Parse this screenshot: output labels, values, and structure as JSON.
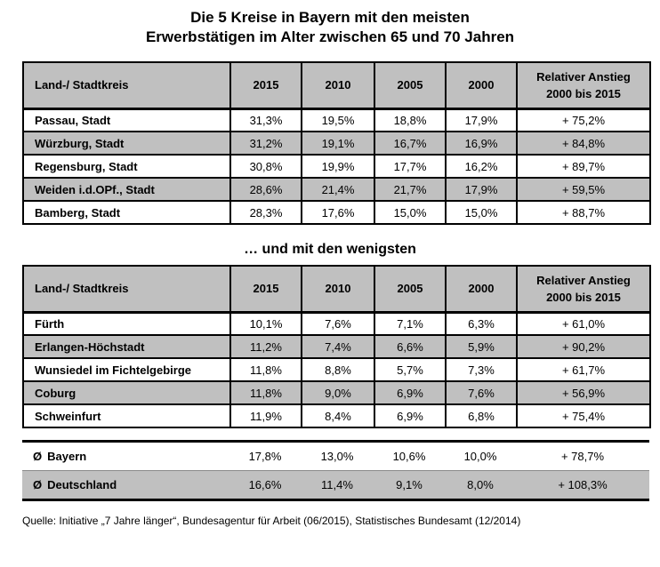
{
  "title": {
    "line1": "Die 5 Kreise in Bayern mit den meisten",
    "line2": "Erwerbstätigen im Alter zwischen 65 und 70 Jahren"
  },
  "section_least_title": "… und mit den wenigsten",
  "shared": {
    "columns": [
      "Land-/ Stadtkreis",
      "2015",
      "2010",
      "2005",
      "2000"
    ],
    "anstieg_line1": "Relativer Anstieg",
    "anstieg_line2": "2000 bis 2015"
  },
  "table_most": {
    "rows": [
      {
        "cells": [
          "Passau, Stadt",
          "31,3%",
          "19,5%",
          "18,8%",
          "17,9%",
          "+ 75,2%"
        ]
      },
      {
        "cells": [
          "Würzburg, Stadt",
          "31,2%",
          "19,1%",
          "16,7%",
          "16,9%",
          "+ 84,8%"
        ]
      },
      {
        "cells": [
          "Regensburg, Stadt",
          "30,8%",
          "19,9%",
          "17,7%",
          "16,2%",
          "+ 89,7%"
        ]
      },
      {
        "cells": [
          "Weiden i.d.OPf., Stadt",
          "28,6%",
          "21,4%",
          "21,7%",
          "17,9%",
          "+ 59,5%"
        ]
      },
      {
        "cells": [
          "Bamberg, Stadt",
          "28,3%",
          "17,6%",
          "15,0%",
          "15,0%",
          "+ 88,7%"
        ]
      }
    ]
  },
  "table_least": {
    "rows": [
      {
        "cells": [
          "Fürth",
          "10,1%",
          "7,6%",
          "7,1%",
          "6,3%",
          "+ 61,0%"
        ]
      },
      {
        "cells": [
          "Erlangen-Höchstadt",
          "11,2%",
          "7,4%",
          "6,6%",
          "5,9%",
          "+ 90,2%"
        ]
      },
      {
        "cells": [
          "Wunsiedel im Fichtelgebirge",
          "11,8%",
          "8,8%",
          "5,7%",
          "7,3%",
          "+ 61,7%"
        ]
      },
      {
        "cells": [
          "Coburg",
          "11,8%",
          "9,0%",
          "6,9%",
          "7,6%",
          "+ 56,9%"
        ]
      },
      {
        "cells": [
          "Schweinfurt",
          "11,9%",
          "8,4%",
          "6,9%",
          "6,8%",
          "+ 75,4%"
        ]
      }
    ]
  },
  "summary": {
    "rows": [
      {
        "symbol": "Ø",
        "label": "Bayern",
        "cells": [
          "17,8%",
          "13,0%",
          "10,6%",
          "10,0%",
          "+ 78,7%"
        ]
      },
      {
        "symbol": "Ø",
        "label": "Deutschland",
        "cells": [
          "16,6%",
          "11,4%",
          "9,1%",
          "8,0%",
          "+ 108,3%"
        ]
      }
    ]
  },
  "source": "Quelle: Initiative „7 Jahre länger“, Bundesagentur für Arbeit (06/2015), Statistisches Bundesamt (12/2014)",
  "colors": {
    "shading": "#c0c0c0",
    "border": "#000000",
    "background": "#ffffff",
    "text": "#000000"
  }
}
